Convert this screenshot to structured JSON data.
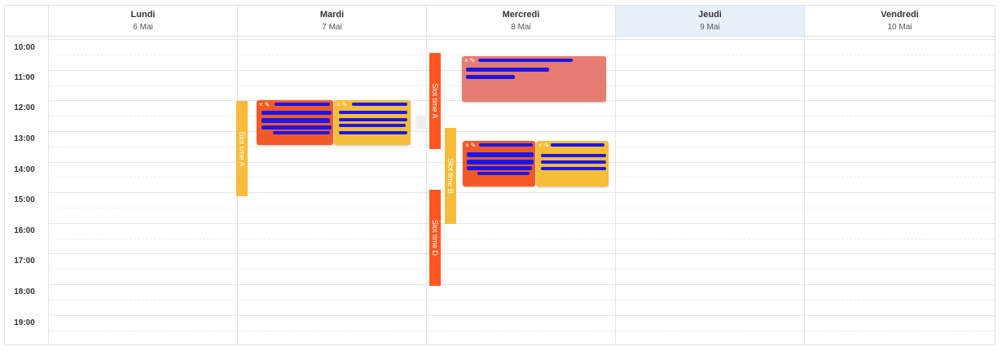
{
  "calendar": {
    "days": [
      {
        "name": "Lundi",
        "date": "6 Mai"
      },
      {
        "name": "Mardi",
        "date": "7 Mai"
      },
      {
        "name": "Mercredi",
        "date": "8 Mai"
      },
      {
        "name": "Jeudi",
        "date": "9 Mai"
      },
      {
        "name": "Vendredi",
        "date": "10 Mai"
      }
    ],
    "today_index": 3,
    "hours": [
      "10:00",
      "11:00",
      "12:00",
      "13:00",
      "14:00",
      "15:00",
      "16:00",
      "17:00",
      "18:00",
      "19:00"
    ]
  },
  "slots": [
    {
      "label": "Slot time A",
      "color": "#f6bb3b"
    },
    {
      "label": "Slot time A",
      "color": "#ff5722"
    },
    {
      "label": "Slot time B",
      "color": "#f6bb3b"
    },
    {
      "label": "Slot time D",
      "color": "#ff5722"
    }
  ],
  "event_icons": {
    "delete": "×",
    "edit": "✎"
  },
  "colors": {
    "today_bg": "#e8f1fa",
    "orange": "#ff5722",
    "yellow": "#f6bb3b",
    "pink": "#e77c72",
    "redaction": "#1c16e8"
  }
}
